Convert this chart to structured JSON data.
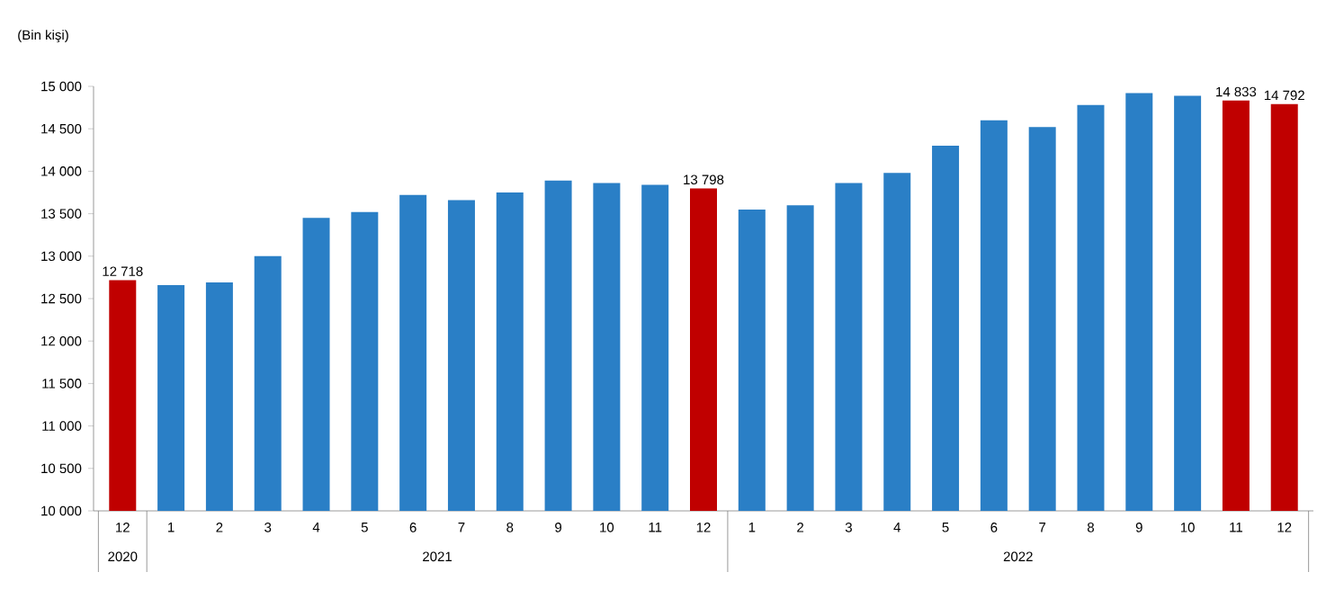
{
  "chart_data": {
    "type": "bar",
    "ylabel": "(Bin kişi)",
    "categories": [
      "12",
      "1",
      "2",
      "3",
      "4",
      "5",
      "6",
      "7",
      "8",
      "9",
      "10",
      "11",
      "12",
      "1",
      "2",
      "3",
      "4",
      "5",
      "6",
      "7",
      "8",
      "9",
      "10",
      "11",
      "12"
    ],
    "values": [
      12718,
      12660,
      12690,
      13000,
      13450,
      13520,
      13720,
      13660,
      13750,
      13890,
      13860,
      13840,
      13798,
      13550,
      13600,
      13860,
      13980,
      14300,
      14600,
      14520,
      14780,
      14920,
      14890,
      14833,
      14792
    ],
    "colors": [
      "#c00000",
      "#2a7fc6",
      "#2a7fc6",
      "#2a7fc6",
      "#2a7fc6",
      "#2a7fc6",
      "#2a7fc6",
      "#2a7fc6",
      "#2a7fc6",
      "#2a7fc6",
      "#2a7fc6",
      "#2a7fc6",
      "#c00000",
      "#2a7fc6",
      "#2a7fc6",
      "#2a7fc6",
      "#2a7fc6",
      "#2a7fc6",
      "#2a7fc6",
      "#2a7fc6",
      "#2a7fc6",
      "#2a7fc6",
      "#2a7fc6",
      "#c00000",
      "#c00000"
    ],
    "value_labels": [
      "12 718",
      null,
      null,
      null,
      null,
      null,
      null,
      null,
      null,
      null,
      null,
      null,
      "13 798",
      null,
      null,
      null,
      null,
      null,
      null,
      null,
      null,
      null,
      null,
      "14 833",
      "14 792"
    ],
    "annotations": [
      "2020",
      "2021",
      "2022"
    ],
    "ylim": [
      10000,
      15000
    ],
    "yticks": [
      {
        "value": 10000,
        "label": "10 000"
      },
      {
        "value": 10500,
        "label": "10 500"
      },
      {
        "value": 11000,
        "label": "11 000"
      },
      {
        "value": 11500,
        "label": "11 500"
      },
      {
        "value": 12000,
        "label": "12 000"
      },
      {
        "value": 12500,
        "label": "12 500"
      },
      {
        "value": 13000,
        "label": "13 000"
      },
      {
        "value": 13500,
        "label": "13 500"
      },
      {
        "value": 14000,
        "label": "14 000"
      },
      {
        "value": 14500,
        "label": "14 500"
      },
      {
        "value": 15000,
        "label": "15 000"
      }
    ],
    "grid": false
  }
}
